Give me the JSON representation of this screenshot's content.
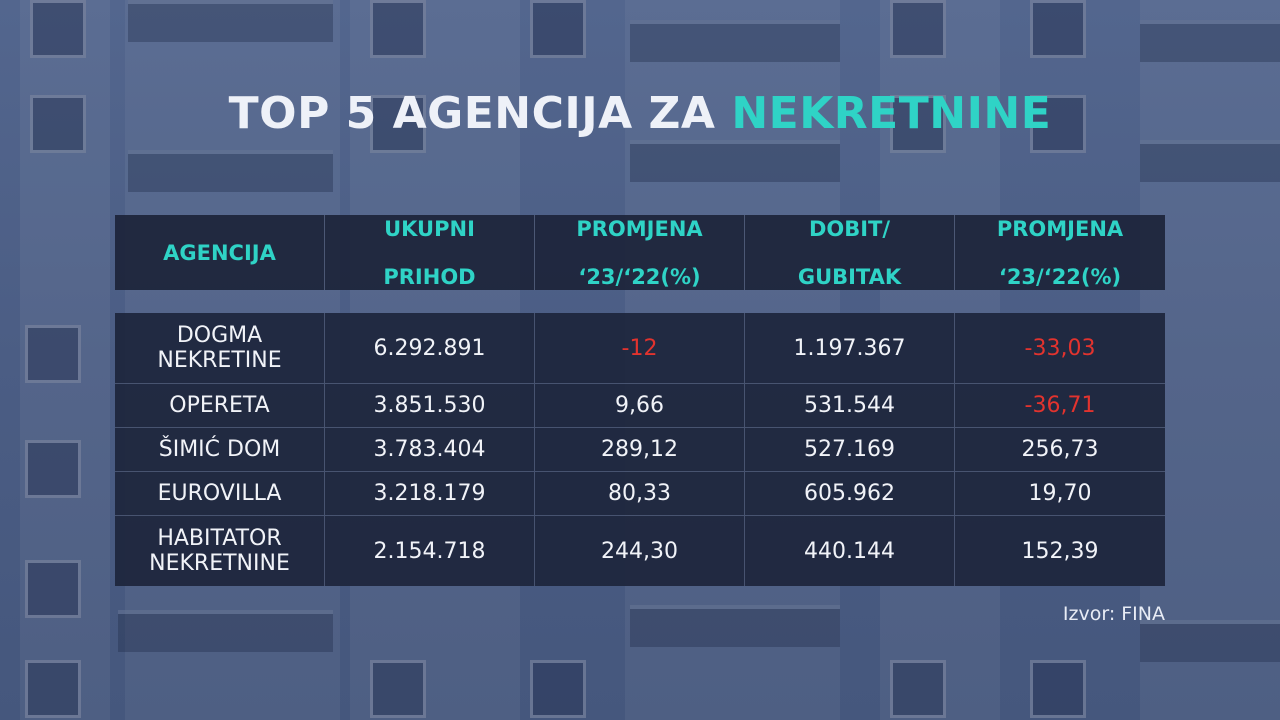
{
  "title": {
    "main": "TOP 5 AGENCIJA ZA",
    "accent": "NEKRETNINE"
  },
  "chart_data": {
    "type": "table",
    "columns": [
      "AGENCIJA",
      "UKUPNI PRIHOD",
      "PROMJENA '23/'22(%)",
      "DOBIT/ GUBITAK",
      "PROMJENA '23/'22(%)"
    ],
    "header_lines": [
      [
        "AGENCIJA"
      ],
      [
        "UKUPNI",
        "PRIHOD"
      ],
      [
        "PROMJENA",
        "‘23/‘22(%)"
      ],
      [
        "DOBIT/",
        "GUBITAK"
      ],
      [
        "PROMJENA",
        "‘23/‘22(%)"
      ]
    ],
    "rows": [
      {
        "agency": [
          "DOGMA",
          "NEKRETINE"
        ],
        "prihod": "6.292.891",
        "promjena1": "-12",
        "dobit": "1.197.367",
        "promjena2": "-33,03",
        "neg1": true,
        "neg2": true,
        "tall": true
      },
      {
        "agency": [
          "OPERETA"
        ],
        "prihod": "3.851.530",
        "promjena1": "9,66",
        "dobit": "531.544",
        "promjena2": "-36,71",
        "neg1": false,
        "neg2": true,
        "tall": false
      },
      {
        "agency": [
          "ŠIMIĆ DOM"
        ],
        "prihod": "3.783.404",
        "promjena1": "289,12",
        "dobit": "527.169",
        "promjena2": "256,73",
        "neg1": false,
        "neg2": false,
        "tall": false
      },
      {
        "agency": [
          "EUROVILLA"
        ],
        "prihod": "3.218.179",
        "promjena1": "80,33",
        "dobit": "605.962",
        "promjena2": "19,70",
        "neg1": false,
        "neg2": false,
        "tall": false
      },
      {
        "agency": [
          "HABITATOR",
          "NEKRETNINE"
        ],
        "prihod": "2.154.718",
        "promjena1": "244,30",
        "dobit": "440.144",
        "promjena2": "152,39",
        "neg1": false,
        "neg2": false,
        "tall": true
      }
    ],
    "colors": {
      "accent": "#2fd3c6",
      "negative": "#e2332e",
      "text": "#f1f3f8"
    }
  },
  "source": "Izvor: FINA"
}
